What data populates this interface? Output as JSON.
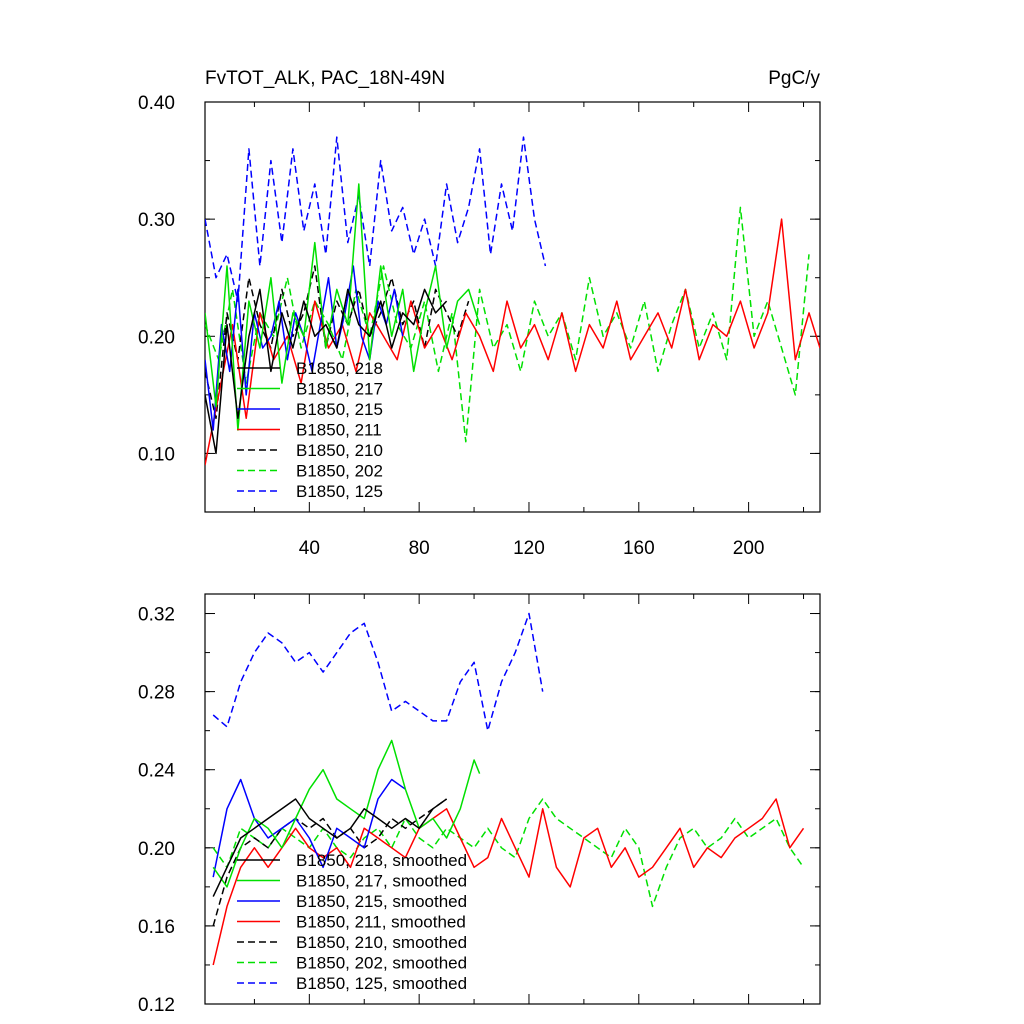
{
  "chart_data": [
    {
      "type": "line",
      "title_left": "FvTOT_ALK, PAC_18N-49N",
      "title_right": "PgC/y",
      "xlabel": "",
      "ylabel": "",
      "xlim": [
        2,
        226
      ],
      "ylim": [
        0.05,
        0.4
      ],
      "xticks": [
        40,
        80,
        120,
        160,
        200
      ],
      "xtick_labels": [
        "40",
        "80",
        "120",
        "160",
        "200"
      ],
      "yticks": [
        0.1,
        0.2,
        0.3,
        0.4
      ],
      "ytick_labels": [
        "0.10",
        "0.20",
        "0.30",
        "0.40"
      ],
      "legend_position": "lower-left",
      "series": [
        {
          "name": "B1850, 218",
          "color": "#000000",
          "dash": "solid",
          "x": [
            2,
            6,
            10,
            14,
            18,
            22,
            26,
            30,
            34,
            38,
            42,
            46,
            50,
            54,
            58,
            62,
            66,
            70,
            74,
            78,
            82,
            86,
            90
          ],
          "values": [
            0.15,
            0.1,
            0.21,
            0.13,
            0.2,
            0.24,
            0.17,
            0.22,
            0.19,
            0.23,
            0.2,
            0.21,
            0.19,
            0.24,
            0.21,
            0.2,
            0.23,
            0.19,
            0.22,
            0.21,
            0.24,
            0.22,
            0.23
          ]
        },
        {
          "name": "B1850, 217",
          "color": "#00e000",
          "dash": "solid",
          "x": [
            2,
            6,
            10,
            14,
            18,
            22,
            26,
            30,
            34,
            38,
            42,
            46,
            50,
            54,
            58,
            62,
            66,
            70,
            74,
            78,
            82,
            86,
            90,
            94,
            98,
            102
          ],
          "values": [
            0.22,
            0.14,
            0.26,
            0.12,
            0.23,
            0.19,
            0.25,
            0.16,
            0.22,
            0.2,
            0.28,
            0.19,
            0.24,
            0.21,
            0.33,
            0.18,
            0.26,
            0.2,
            0.24,
            0.17,
            0.22,
            0.26,
            0.19,
            0.23,
            0.24,
            0.21
          ]
        },
        {
          "name": "B1850, 215",
          "color": "#0000ff",
          "dash": "solid",
          "x": [
            2,
            5,
            8,
            11,
            14,
            17,
            20,
            23,
            26,
            29,
            32,
            35,
            38,
            41,
            44,
            47,
            50,
            53,
            56,
            59,
            62,
            65,
            68,
            71,
            74
          ],
          "values": [
            0.18,
            0.12,
            0.21,
            0.17,
            0.24,
            0.15,
            0.22,
            0.19,
            0.2,
            0.23,
            0.18,
            0.22,
            0.2,
            0.17,
            0.21,
            0.25,
            0.19,
            0.22,
            0.26,
            0.2,
            0.18,
            0.23,
            0.21,
            0.24,
            0.2
          ]
        },
        {
          "name": "B1850, 211",
          "color": "#ff0000",
          "dash": "solid",
          "x": [
            2,
            7,
            12,
            17,
            22,
            27,
            32,
            37,
            42,
            47,
            52,
            57,
            62,
            67,
            72,
            77,
            82,
            87,
            92,
            97,
            102,
            107,
            112,
            117,
            122,
            127,
            132,
            137,
            142,
            147,
            152,
            157,
            162,
            167,
            172,
            177,
            182,
            187,
            192,
            197,
            202,
            207,
            212,
            217,
            222,
            226
          ],
          "values": [
            0.09,
            0.15,
            0.21,
            0.13,
            0.22,
            0.18,
            0.2,
            0.16,
            0.23,
            0.19,
            0.21,
            0.17,
            0.22,
            0.2,
            0.18,
            0.23,
            0.19,
            0.21,
            0.18,
            0.22,
            0.2,
            0.17,
            0.23,
            0.19,
            0.21,
            0.18,
            0.22,
            0.17,
            0.21,
            0.19,
            0.23,
            0.18,
            0.2,
            0.22,
            0.19,
            0.24,
            0.18,
            0.21,
            0.2,
            0.23,
            0.19,
            0.22,
            0.3,
            0.18,
            0.22,
            0.19
          ]
        },
        {
          "name": "B1850, 210",
          "color": "#000000",
          "dash": "dashed",
          "x": [
            2,
            6,
            10,
            14,
            18,
            22,
            26,
            30,
            34,
            38,
            42,
            46,
            50,
            54,
            58,
            62,
            66,
            70,
            74,
            78,
            82,
            86,
            90,
            94,
            98
          ],
          "values": [
            0.17,
            0.13,
            0.22,
            0.18,
            0.25,
            0.21,
            0.19,
            0.24,
            0.2,
            0.22,
            0.26,
            0.19,
            0.23,
            0.21,
            0.24,
            0.2,
            0.22,
            0.25,
            0.21,
            0.23,
            0.19,
            0.24,
            0.22,
            0.2,
            0.23
          ]
        },
        {
          "name": "B1850, 202",
          "color": "#00e000",
          "dash": "dashed",
          "x": [
            2,
            7,
            12,
            17,
            22,
            27,
            32,
            37,
            42,
            47,
            52,
            57,
            62,
            67,
            72,
            77,
            82,
            87,
            92,
            97,
            102,
            107,
            112,
            117,
            122,
            127,
            132,
            137,
            142,
            147,
            152,
            157,
            162,
            167,
            172,
            177,
            182,
            187,
            192,
            197,
            202,
            207,
            212,
            217,
            222
          ],
          "values": [
            0.21,
            0.18,
            0.24,
            0.16,
            0.22,
            0.2,
            0.25,
            0.19,
            0.23,
            0.21,
            0.18,
            0.24,
            0.2,
            0.26,
            0.21,
            0.19,
            0.23,
            0.17,
            0.22,
            0.11,
            0.24,
            0.19,
            0.21,
            0.17,
            0.23,
            0.2,
            0.22,
            0.18,
            0.25,
            0.2,
            0.22,
            0.19,
            0.23,
            0.17,
            0.21,
            0.24,
            0.19,
            0.22,
            0.18,
            0.31,
            0.2,
            0.23,
            0.19,
            0.15,
            0.27
          ]
        },
        {
          "name": "B1850, 125",
          "color": "#0000ff",
          "dash": "dashed",
          "x": [
            2,
            6,
            10,
            14,
            18,
            22,
            26,
            30,
            34,
            38,
            42,
            46,
            50,
            54,
            58,
            62,
            66,
            70,
            74,
            78,
            82,
            86,
            90,
            94,
            98,
            102,
            106,
            110,
            114,
            118,
            122,
            126
          ],
          "values": [
            0.3,
            0.25,
            0.27,
            0.23,
            0.36,
            0.26,
            0.35,
            0.28,
            0.36,
            0.29,
            0.33,
            0.27,
            0.37,
            0.28,
            0.32,
            0.26,
            0.35,
            0.29,
            0.31,
            0.27,
            0.3,
            0.26,
            0.33,
            0.28,
            0.31,
            0.36,
            0.27,
            0.33,
            0.29,
            0.37,
            0.3,
            0.26
          ]
        }
      ]
    },
    {
      "type": "line",
      "xlabel": "",
      "ylabel": "",
      "xlim": [
        2,
        226
      ],
      "ylim": [
        0.12,
        0.33
      ],
      "xticks": [
        40,
        80,
        120,
        160,
        200
      ],
      "yticks": [
        0.12,
        0.16,
        0.2,
        0.24,
        0.28,
        0.32
      ],
      "ytick_labels": [
        "0.12",
        "0.16",
        "0.20",
        "0.24",
        "0.28",
        "0.32"
      ],
      "legend_position": "lower-left",
      "series": [
        {
          "name": "B1850, 218, smoothed",
          "color": "#000000",
          "dash": "solid",
          "x": [
            5,
            10,
            15,
            20,
            25,
            30,
            35,
            40,
            45,
            50,
            55,
            60,
            65,
            70,
            75,
            80,
            85,
            90
          ],
          "values": [
            0.175,
            0.19,
            0.205,
            0.21,
            0.215,
            0.22,
            0.225,
            0.215,
            0.21,
            0.205,
            0.21,
            0.22,
            0.215,
            0.21,
            0.215,
            0.21,
            0.22,
            0.225
          ]
        },
        {
          "name": "B1850, 217, smoothed",
          "color": "#00e000",
          "dash": "solid",
          "x": [
            5,
            10,
            15,
            20,
            25,
            30,
            35,
            40,
            45,
            50,
            55,
            60,
            65,
            70,
            75,
            80,
            85,
            90,
            95,
            100,
            102
          ],
          "values": [
            0.19,
            0.18,
            0.2,
            0.215,
            0.21,
            0.2,
            0.215,
            0.23,
            0.24,
            0.225,
            0.22,
            0.215,
            0.24,
            0.255,
            0.23,
            0.21,
            0.215,
            0.205,
            0.22,
            0.245,
            0.238
          ]
        },
        {
          "name": "B1850, 215, smoothed",
          "color": "#0000ff",
          "dash": "solid",
          "x": [
            5,
            10,
            15,
            20,
            25,
            30,
            35,
            40,
            45,
            50,
            55,
            60,
            65,
            70,
            75
          ],
          "values": [
            0.185,
            0.22,
            0.235,
            0.215,
            0.205,
            0.21,
            0.215,
            0.205,
            0.19,
            0.21,
            0.205,
            0.2,
            0.225,
            0.235,
            0.23
          ]
        },
        {
          "name": "B1850, 211, smoothed",
          "color": "#ff0000",
          "dash": "solid",
          "x": [
            5,
            10,
            15,
            20,
            25,
            30,
            35,
            40,
            45,
            50,
            55,
            60,
            65,
            70,
            75,
            80,
            85,
            90,
            95,
            100,
            105,
            110,
            115,
            120,
            125,
            130,
            135,
            140,
            145,
            150,
            155,
            160,
            165,
            170,
            175,
            180,
            185,
            190,
            195,
            200,
            205,
            210,
            215,
            220
          ],
          "values": [
            0.14,
            0.17,
            0.19,
            0.2,
            0.19,
            0.2,
            0.21,
            0.2,
            0.195,
            0.2,
            0.19,
            0.21,
            0.205,
            0.2,
            0.195,
            0.21,
            0.215,
            0.22,
            0.205,
            0.19,
            0.195,
            0.215,
            0.2,
            0.185,
            0.22,
            0.19,
            0.18,
            0.205,
            0.21,
            0.19,
            0.2,
            0.185,
            0.19,
            0.2,
            0.21,
            0.19,
            0.2,
            0.195,
            0.205,
            0.21,
            0.215,
            0.225,
            0.2,
            0.21
          ]
        },
        {
          "name": "B1850, 210, smoothed",
          "color": "#000000",
          "dash": "dashed",
          "x": [
            5,
            10,
            15,
            20,
            25,
            30,
            35,
            40,
            45,
            50,
            55,
            60,
            65,
            70,
            75,
            80,
            85,
            90
          ],
          "values": [
            0.16,
            0.185,
            0.2,
            0.205,
            0.2,
            0.21,
            0.215,
            0.21,
            0.215,
            0.205,
            0.21,
            0.2,
            0.205,
            0.215,
            0.21,
            0.215,
            0.22,
            0.225
          ]
        },
        {
          "name": "B1850, 202, smoothed",
          "color": "#00e000",
          "dash": "dashed",
          "x": [
            5,
            10,
            15,
            20,
            25,
            30,
            35,
            40,
            45,
            50,
            55,
            60,
            65,
            70,
            75,
            80,
            85,
            90,
            95,
            100,
            105,
            110,
            115,
            120,
            125,
            130,
            135,
            140,
            145,
            150,
            155,
            160,
            165,
            170,
            175,
            180,
            185,
            190,
            195,
            200,
            205,
            210,
            215,
            220
          ],
          "values": [
            0.2,
            0.19,
            0.21,
            0.205,
            0.2,
            0.21,
            0.205,
            0.2,
            0.21,
            0.2,
            0.195,
            0.205,
            0.21,
            0.2,
            0.215,
            0.205,
            0.2,
            0.21,
            0.205,
            0.2,
            0.21,
            0.2,
            0.195,
            0.215,
            0.225,
            0.215,
            0.21,
            0.205,
            0.2,
            0.195,
            0.21,
            0.2,
            0.17,
            0.19,
            0.205,
            0.21,
            0.2,
            0.205,
            0.215,
            0.205,
            0.21,
            0.215,
            0.2,
            0.19
          ]
        },
        {
          "name": "B1850, 125, smoothed",
          "color": "#0000ff",
          "dash": "dashed",
          "x": [
            5,
            10,
            15,
            20,
            25,
            30,
            35,
            40,
            45,
            50,
            55,
            60,
            65,
            70,
            75,
            80,
            85,
            90,
            95,
            100,
            105,
            110,
            115,
            120,
            125
          ],
          "values": [
            0.268,
            0.262,
            0.285,
            0.3,
            0.31,
            0.305,
            0.295,
            0.3,
            0.29,
            0.3,
            0.31,
            0.315,
            0.295,
            0.27,
            0.275,
            0.27,
            0.265,
            0.265,
            0.285,
            0.295,
            0.26,
            0.285,
            0.3,
            0.32,
            0.28
          ]
        }
      ]
    }
  ]
}
